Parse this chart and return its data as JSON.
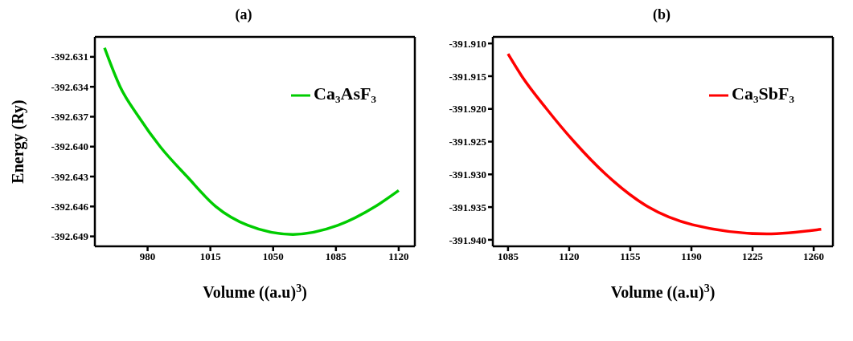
{
  "chart_data": [
    {
      "type": "line",
      "title": "(a)",
      "xlabel": "Volume ((a.u)$^{3}$)",
      "ylabel": "Energy (Ry)",
      "legend": "top right",
      "marker": "none",
      "line_style": "solid",
      "grid": false,
      "x": [
        956,
        964.7,
        975,
        987,
        1002,
        1018,
        1036,
        1061,
        1086,
        1107,
        1120
      ],
      "series": [
        {
          "name": "Ca₃AsF₃",
          "color": "#00cc00",
          "values": [
            -392.6301,
            -392.634,
            -392.637,
            -392.64,
            -392.643,
            -392.646,
            -392.6479,
            -392.6488,
            -392.6479,
            -392.646,
            -392.6444
          ]
        }
      ],
      "xlim": [
        950.6,
        1129
      ],
      "xticks": [
        980,
        1015,
        1050,
        1085,
        1120
      ],
      "ylim": [
        -392.65,
        -392.629
      ],
      "yticks": [
        -392.631,
        -392.634,
        -392.637,
        {
          "value": -392.64,
          "label": "-392.640"
        },
        -392.643,
        -392.646,
        -392.649
      ]
    },
    {
      "type": "line",
      "title": "(b)",
      "xlabel": "Volume ((a.u)$^{3}$)",
      "legend": "top right",
      "marker": "none",
      "line_style": "solid",
      "grid": false,
      "x": [
        1085,
        1092.9,
        1107.1,
        1122.8,
        1141,
        1165.4,
        1190.7,
        1233.2,
        1264.3
      ],
      "series": [
        {
          "name": "Ca₃SbF₃",
          "color": "#ff0000",
          "values": [
            -391.9116,
            -391.915,
            -391.92,
            -391.925,
            -391.93,
            -391.935,
            -391.9377,
            -391.9391,
            -391.9384
          ]
        }
      ],
      "xlim": [
        1076.3,
        1271
      ],
      "xticks": [
        1085,
        1120,
        1155,
        1190,
        1225,
        1260
      ],
      "ylim": [
        -391.941,
        -391.909
      ],
      "yticks": [
        {
          "value": -391.91,
          "label": "-391.910"
        },
        -391.915,
        {
          "value": -391.92,
          "label": "-391.920"
        },
        -391.925,
        {
          "value": -391.93,
          "label": "-391.930"
        },
        -391.935,
        {
          "value": -391.94,
          "label": "-391.940"
        }
      ]
    }
  ]
}
